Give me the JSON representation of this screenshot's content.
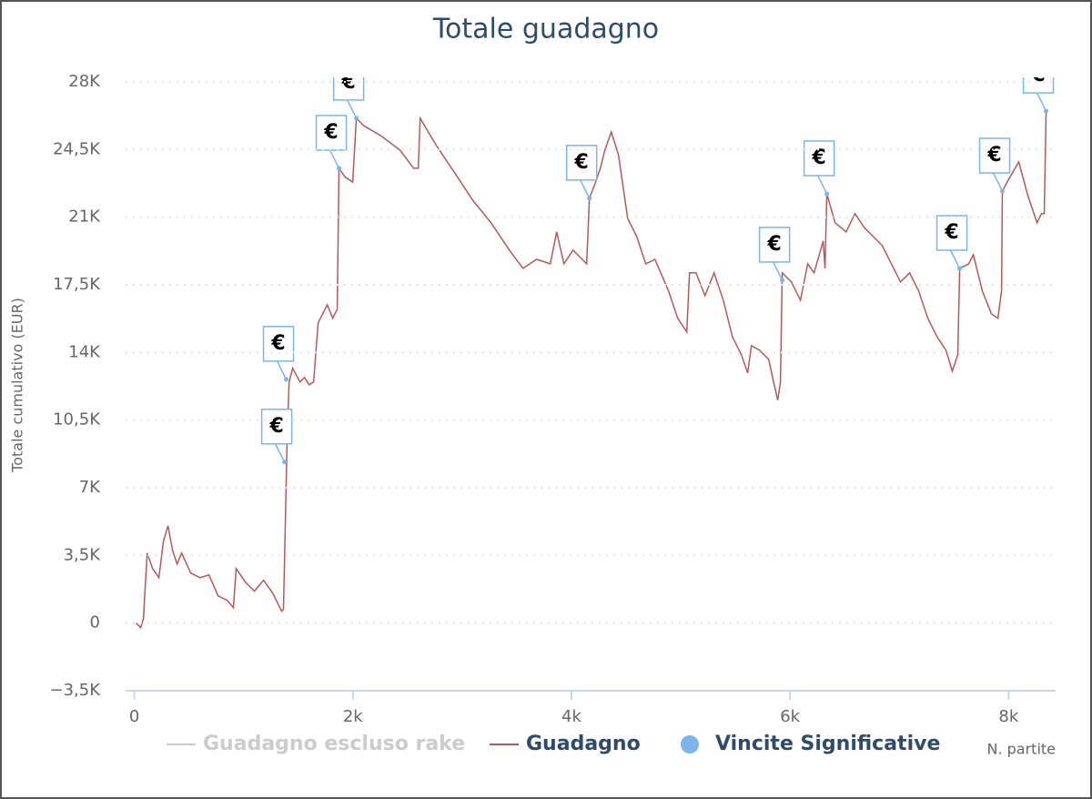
{
  "chart_data": {
    "type": "line",
    "title": "Totale guadagno",
    "y_label": "Totale cumulativo (EUR)",
    "x_label": "N. partite",
    "xlim": [
      -80,
      8430
    ],
    "ylim": [
      -3500,
      28000
    ],
    "xticks": [
      0,
      {
        "value": 2000,
        "label": "2k"
      },
      {
        "value": 4000,
        "label": "4k"
      },
      {
        "value": 6000,
        "label": "6k"
      },
      {
        "value": 8000,
        "label": "8k"
      }
    ],
    "yticks": [
      {
        "value": -3500,
        "label": "−3,5K"
      },
      0,
      {
        "value": 3500,
        "label": "3,5K"
      },
      {
        "value": 7000,
        "label": "7K"
      },
      {
        "value": 10500,
        "label": "10,5K"
      },
      {
        "value": 14000,
        "label": "14K"
      },
      {
        "value": 17500,
        "label": "17,5K"
      },
      {
        "value": 21000,
        "label": "21K"
      },
      {
        "value": 24500,
        "label": "24,5K"
      },
      {
        "value": 28000,
        "label": "28K"
      }
    ],
    "grid": true,
    "legend": "bottom",
    "series": [
      {
        "name": "Guadagno escluso rake",
        "color": "#cccccc",
        "visible": false
      },
      {
        "name": "Guadagno",
        "color": "#b5595c",
        "x": [
          17,
          58,
          83,
          117,
          167,
          225,
          266,
          308,
          350,
          391,
          433,
          516,
          600,
          683,
          766,
          849,
          907,
          932,
          1016,
          1099,
          1182,
          1266,
          1349,
          1365,
          1399,
          1416,
          1449,
          1516,
          1557,
          1599,
          1640,
          1682,
          1765,
          1815,
          1857,
          1873,
          1932,
          1998,
          2032,
          2098,
          2265,
          2431,
          2556,
          2598,
          2615,
          2764,
          2931,
          3097,
          3264,
          3431,
          3556,
          3681,
          3806,
          3864,
          3931,
          4014,
          4139,
          4164,
          4222,
          4264,
          4306,
          4364,
          4430,
          4514,
          4597,
          4680,
          4764,
          4889,
          4972,
          5055,
          5080,
          5139,
          5222,
          5305,
          5389,
          5472,
          5555,
          5612,
          5646,
          5721,
          5804,
          5887,
          5912,
          5929,
          6012,
          6095,
          6162,
          6220,
          6303,
          6320,
          6337,
          6412,
          6512,
          6595,
          6678,
          6761,
          6844,
          6927,
          7011,
          7094,
          7177,
          7261,
          7344,
          7427,
          7485,
          7535,
          7552,
          7635,
          7677,
          7760,
          7843,
          7902,
          7935,
          7943,
          8010,
          8093,
          8176,
          8260,
          8301,
          8326,
          8343
        ],
        "values": [
          0,
          -235,
          235,
          3620,
          2820,
          2350,
          4235,
          5035,
          3765,
          3060,
          3620,
          2590,
          2350,
          2490,
          1410,
          1175,
          800,
          2820,
          2120,
          1650,
          2210,
          1550,
          610,
          705,
          9650,
          12470,
          13180,
          12470,
          12710,
          12330,
          12470,
          15530,
          16470,
          15770,
          16240,
          23530,
          23060,
          22820,
          26120,
          25740,
          25180,
          24470,
          23530,
          23530,
          26120,
          24710,
          23300,
          21880,
          20710,
          19300,
          18350,
          18820,
          18590,
          20240,
          18590,
          19300,
          18590,
          21980,
          22820,
          23530,
          24470,
          25410,
          24240,
          20940,
          20000,
          18590,
          18820,
          17180,
          15770,
          15060,
          18120,
          18120,
          16940,
          18120,
          16710,
          14820,
          13880,
          12940,
          14350,
          14120,
          13650,
          11530,
          12470,
          18120,
          17650,
          16710,
          18590,
          18120,
          19770,
          18350,
          22210,
          20710,
          20240,
          21180,
          20470,
          20000,
          19530,
          18590,
          17650,
          18120,
          17180,
          15770,
          14820,
          14120,
          13030,
          13880,
          18350,
          18590,
          19060,
          17180,
          16000,
          15770,
          17180,
          22350,
          23060,
          23860,
          22120,
          20710,
          21180,
          21180,
          26490
        ]
      },
      {
        "name": "Vincite Significative",
        "type": "scatter",
        "color": "#7cb5ec",
        "flag_label": "€",
        "x": [
          1374,
          1390,
          1873,
          2032,
          4164,
          5929,
          6337,
          7552,
          7943,
          8343
        ],
        "values": [
          8330,
          12610,
          23530,
          26120,
          21980,
          17740,
          22210,
          18350,
          22350,
          26490
        ]
      }
    ]
  }
}
